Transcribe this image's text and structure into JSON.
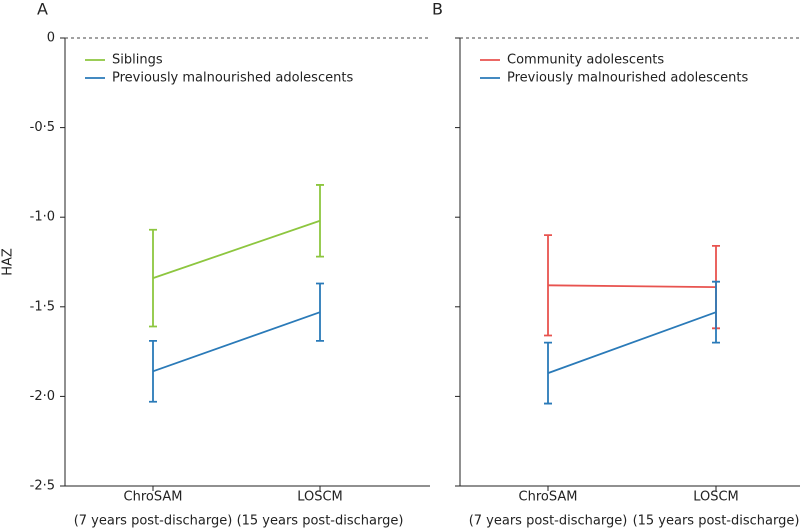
{
  "chart_data": [
    {
      "type": "line",
      "panel": "A",
      "y_label": "HAZ",
      "categories": [
        "ChroSAM",
        "LOSCM"
      ],
      "category_notes": [
        "(7 years post-discharge)",
        "(15 years post-discharge)"
      ],
      "series": [
        {
          "name": "Siblings",
          "color": "#8dc63f",
          "values": [
            -1.34,
            -1.02
          ],
          "errors": [
            0.27,
            0.2
          ]
        },
        {
          "name": "Previously malnourished adolescents",
          "color": "#2a7ab8",
          "values": [
            -1.86,
            -1.53
          ],
          "errors": [
            0.17,
            0.16
          ]
        }
      ],
      "ylim": [
        -2.5,
        0
      ],
      "yticks": [
        0,
        {
          "value": -0.5,
          "label": "-0·5"
        },
        {
          "value": -1.0,
          "label": "-1·0"
        },
        {
          "value": -1.5,
          "label": "-1·5"
        },
        {
          "value": -2.0,
          "label": "-2·0"
        },
        {
          "value": -2.5,
          "label": "-2·5"
        }
      ],
      "tick_labels": true,
      "zero_line": true,
      "legend": "top-left"
    },
    {
      "type": "line",
      "panel": "B",
      "categories": [
        "ChroSAM",
        "LOSCM"
      ],
      "category_notes": [
        "(7 years post-discharge)",
        "(15 years post-discharge)"
      ],
      "series": [
        {
          "name": "Community adolescents",
          "color": "#e8534f",
          "values": [
            -1.38,
            -1.39
          ],
          "errors": [
            0.28,
            0.23
          ]
        },
        {
          "name": "Previously malnourished adolescents",
          "color": "#2a7ab8",
          "values": [
            -1.87,
            -1.53
          ],
          "errors": [
            0.17,
            0.17
          ]
        }
      ],
      "ylim": [
        -2.5,
        0
      ],
      "yticks": [
        0,
        -0.5,
        -1.0,
        -1.5,
        -2.0,
        -2.5
      ],
      "tick_labels": false,
      "zero_line": true,
      "legend": "top-left"
    }
  ]
}
